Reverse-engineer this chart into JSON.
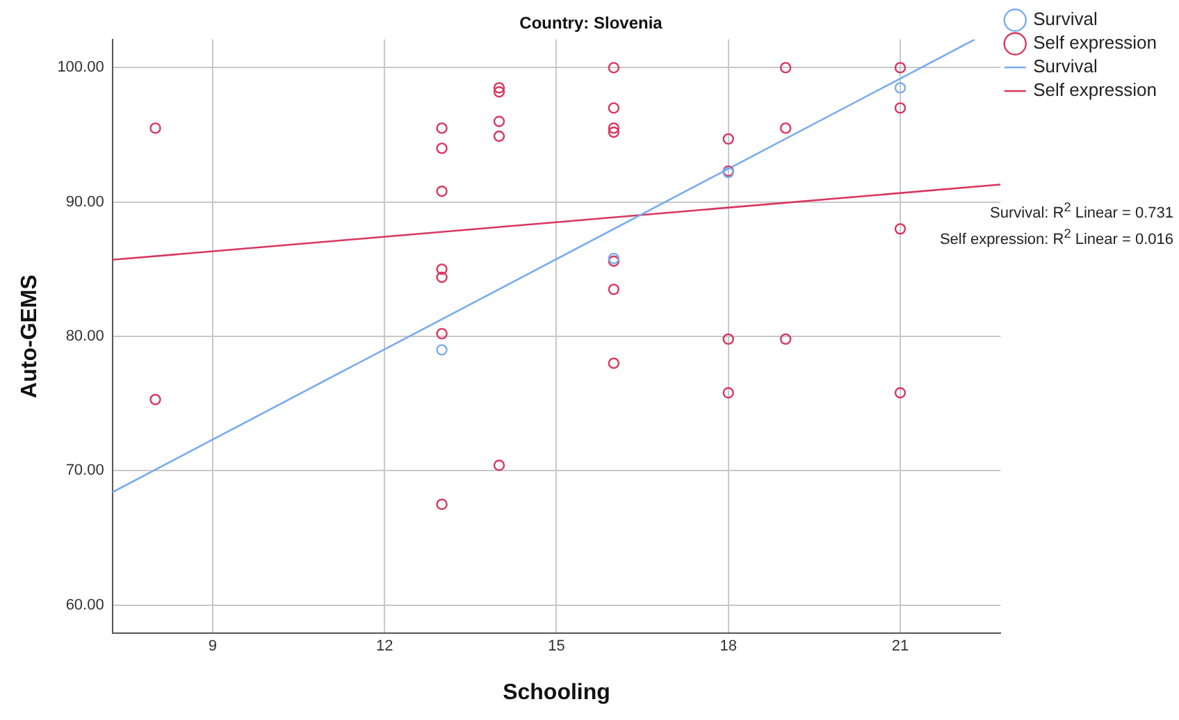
{
  "chart_data": {
    "type": "scatter",
    "title": "Country: Slovenia",
    "xlabel": "Schooling",
    "ylabel": "Auto-GEMS",
    "xlim": [
      7.25,
      22.75
    ],
    "xticks": [
      9,
      12,
      15,
      18,
      21
    ],
    "ylim": [
      57.9,
      102.1
    ],
    "yticks": [
      {
        "value": 60,
        "label": "60.00"
      },
      {
        "value": 70,
        "label": "70.00"
      },
      {
        "value": 80,
        "label": "80.00"
      },
      {
        "value": 90,
        "label": "90.00"
      },
      {
        "value": 100,
        "label": "100.00"
      }
    ],
    "grid": true,
    "legend": "right",
    "marker": "circle",
    "series": [
      {
        "name": "Survival",
        "color": "#7aacee",
        "x": [
          13,
          16,
          18,
          21
        ],
        "values": [
          79.0,
          85.8,
          92.2,
          98.5
        ]
      },
      {
        "name": "Self expression",
        "color": "#d9365e",
        "x": [
          8,
          8,
          13,
          13,
          13,
          13,
          13,
          13,
          13,
          14,
          14,
          14,
          14,
          14,
          16,
          16,
          16,
          16,
          16,
          16,
          16,
          18,
          18,
          18,
          18,
          19,
          19,
          19,
          21,
          21,
          21,
          21
        ],
        "values": [
          95.5,
          75.3,
          95.5,
          94.0,
          90.8,
          85.0,
          84.4,
          80.2,
          67.5,
          98.5,
          98.2,
          96.0,
          94.9,
          70.4,
          100,
          97.0,
          95.5,
          95.2,
          85.6,
          83.5,
          78.0,
          94.7,
          92.3,
          79.8,
          75.8,
          100,
          95.5,
          79.8,
          100,
          97.0,
          88.0,
          75.8
        ]
      },
      {
        "name": "Survival",
        "type": "line",
        "marker": "none",
        "color": "#7aacee",
        "x": [
          7.25,
          22.3
        ],
        "values": [
          68.4,
          102.1
        ]
      },
      {
        "name": "Self expression",
        "type": "line",
        "marker": "none",
        "color": "#d9365e",
        "x": [
          7.25,
          22.75
        ],
        "values": [
          85.7,
          91.3
        ]
      }
    ],
    "annotations": [
      "Survival: R$^{2}$ Linear = 0.731",
      "Self expression: R$^{2}$ Linear = 0.016"
    ]
  }
}
